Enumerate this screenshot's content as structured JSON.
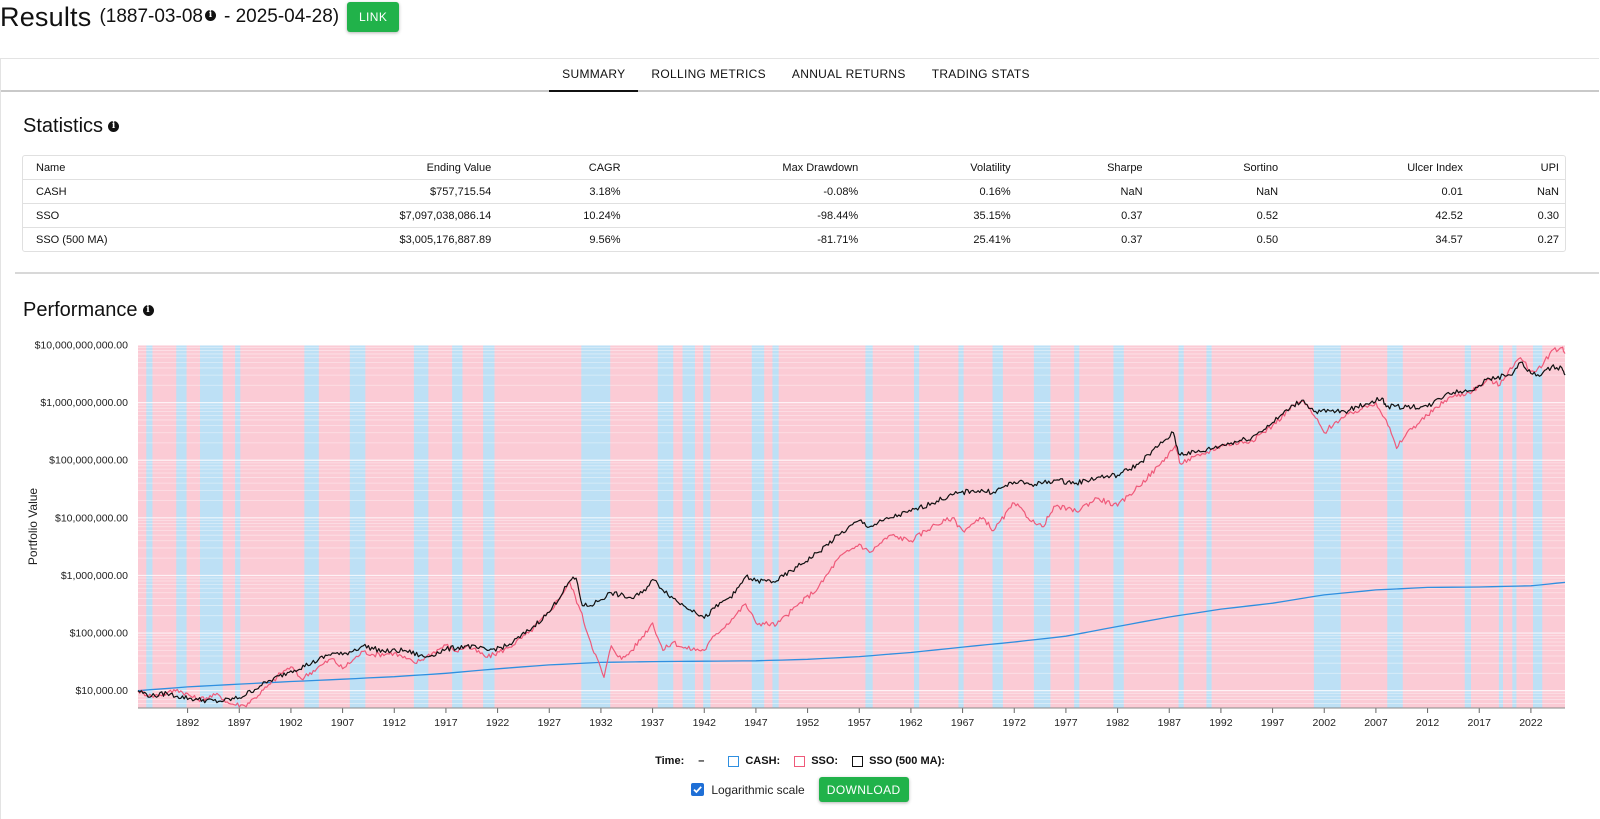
{
  "header": {
    "title": "Results",
    "range_start": "(1887-03-08",
    "range_end": "- 2025-04-28)",
    "link_button": "LINK",
    "info_icon": "info-icon"
  },
  "tabs": [
    {
      "label": "SUMMARY",
      "active": true
    },
    {
      "label": "ROLLING METRICS",
      "active": false
    },
    {
      "label": "ANNUAL RETURNS",
      "active": false
    },
    {
      "label": "TRADING STATS",
      "active": false
    }
  ],
  "statistics": {
    "title": "Statistics",
    "columns": [
      "Name",
      "Ending Value",
      "CAGR",
      "Max Drawdown",
      "Volatility",
      "Sharpe",
      "Sortino",
      "Ulcer Index",
      "UPI"
    ],
    "rows": [
      [
        "CASH",
        "$757,715.54",
        "3.18%",
        "-0.08%",
        "0.16%",
        "NaN",
        "NaN",
        "0.01",
        "NaN"
      ],
      [
        "SSO",
        "$7,097,038,086.14",
        "10.24%",
        "-98.44%",
        "35.15%",
        "0.37",
        "0.52",
        "42.52",
        "0.30"
      ],
      [
        "SSO (500 MA)",
        "$3,005,176,887.89",
        "9.56%",
        "-81.71%",
        "25.41%",
        "0.37",
        "0.50",
        "34.57",
        "0.27"
      ]
    ]
  },
  "performance": {
    "title": "Performance"
  },
  "chart_data": {
    "type": "line",
    "ylabel": "Portfolio Value",
    "y_scale": "log",
    "ylim": [
      5000,
      10000000000
    ],
    "xlim": [
      1887.2,
      2025.3
    ],
    "y_ticks": [
      "$10,000.00",
      "$100,000.00",
      "$1,000,000.00",
      "$10,000,000.00",
      "$100,000,000.00",
      "$1,000,000,000.00",
      "$10,000,000,000.00"
    ],
    "y_tick_values": [
      10000,
      100000,
      1000000,
      10000000,
      100000000,
      1000000000,
      10000000000
    ],
    "x_ticks": [
      "1892",
      "1897",
      "1902",
      "1907",
      "1912",
      "1917",
      "1922",
      "1927",
      "1932",
      "1937",
      "1942",
      "1947",
      "1952",
      "1957",
      "1962",
      "1967",
      "1972",
      "1977",
      "1982",
      "1987",
      "1992",
      "1997",
      "2002",
      "2007",
      "2012",
      "2017",
      "2022"
    ],
    "background_regimes": {
      "cash_color": "#bde0f5",
      "invested_color": "#fbcbd5",
      "cash_periods": [
        [
          1888.0,
          1888.6
        ],
        [
          1890.9,
          1891.9
        ],
        [
          1893.2,
          1895.4
        ],
        [
          1896.6,
          1897.1
        ],
        [
          1903.3,
          1904.7
        ],
        [
          1907.7,
          1909.2
        ],
        [
          1913.9,
          1915.3
        ],
        [
          1917.6,
          1918.6
        ],
        [
          1920.6,
          1921.7
        ],
        [
          1930.1,
          1932.9
        ],
        [
          1937.5,
          1939.0
        ],
        [
          1939.9,
          1941.1
        ],
        [
          1941.9,
          1942.6
        ],
        [
          1946.6,
          1947.8
        ],
        [
          1948.6,
          1949.2
        ],
        [
          1957.6,
          1958.3
        ],
        [
          1962.3,
          1962.8
        ],
        [
          1966.6,
          1967.1
        ],
        [
          1969.9,
          1970.9
        ],
        [
          1973.9,
          1975.5
        ],
        [
          1977.8,
          1978.3
        ],
        [
          1981.6,
          1982.6
        ],
        [
          1987.9,
          1988.4
        ],
        [
          1990.6,
          1991.1
        ],
        [
          2001.0,
          2003.6
        ],
        [
          2008.1,
          2009.6
        ],
        [
          2015.6,
          2016.2
        ],
        [
          2018.9,
          2019.3
        ],
        [
          2020.2,
          2020.6
        ],
        [
          2022.2,
          2023.1
        ]
      ]
    },
    "series": [
      {
        "name": "CASH",
        "color": "#2f8fe0",
        "points": [
          [
            1887.2,
            10000
          ],
          [
            1892,
            11600
          ],
          [
            1897,
            13000
          ],
          [
            1902,
            14400
          ],
          [
            1907,
            15800
          ],
          [
            1912,
            17500
          ],
          [
            1917,
            20000
          ],
          [
            1922,
            24000
          ],
          [
            1927,
            28000
          ],
          [
            1932,
            31000
          ],
          [
            1937,
            32000
          ],
          [
            1942,
            32500
          ],
          [
            1947,
            33000
          ],
          [
            1952,
            35000
          ],
          [
            1957,
            39000
          ],
          [
            1962,
            46000
          ],
          [
            1967,
            57000
          ],
          [
            1972,
            70000
          ],
          [
            1977,
            88000
          ],
          [
            1982,
            130000
          ],
          [
            1987,
            190000
          ],
          [
            1992,
            260000
          ],
          [
            1997,
            330000
          ],
          [
            2002,
            460000
          ],
          [
            2007,
            560000
          ],
          [
            2012,
            620000
          ],
          [
            2017,
            630000
          ],
          [
            2022,
            660000
          ],
          [
            2025.3,
            757715
          ]
        ]
      },
      {
        "name": "SSO",
        "color": "#ef5a7a",
        "points": [
          [
            1887.2,
            10000
          ],
          [
            1888.5,
            8000
          ],
          [
            1890,
            9000
          ],
          [
            1891,
            10500
          ],
          [
            1893,
            7000
          ],
          [
            1895,
            8500
          ],
          [
            1896,
            6000
          ],
          [
            1897.5,
            5500
          ],
          [
            1898.5,
            7500
          ],
          [
            1900,
            13000
          ],
          [
            1901,
            20000
          ],
          [
            1902,
            26000
          ],
          [
            1903,
            16000
          ],
          [
            1905,
            28000
          ],
          [
            1906,
            36000
          ],
          [
            1907,
            24000
          ],
          [
            1909,
            48000
          ],
          [
            1910,
            42000
          ],
          [
            1912,
            45000
          ],
          [
            1914,
            30000
          ],
          [
            1915,
            38000
          ],
          [
            1917,
            62000
          ],
          [
            1918,
            48000
          ],
          [
            1919,
            60000
          ],
          [
            1921,
            38000
          ],
          [
            1923,
            55000
          ],
          [
            1925,
            100000
          ],
          [
            1927,
            230000
          ],
          [
            1929,
            750000
          ],
          [
            1930,
            250000
          ],
          [
            1931,
            70000
          ],
          [
            1932.3,
            17000
          ],
          [
            1933,
            60000
          ],
          [
            1934,
            35000
          ],
          [
            1935,
            50000
          ],
          [
            1937,
            150000
          ],
          [
            1938,
            50000
          ],
          [
            1939,
            70000
          ],
          [
            1940,
            55000
          ],
          [
            1942,
            50000
          ],
          [
            1943,
            90000
          ],
          [
            1945,
            200000
          ],
          [
            1946,
            320000
          ],
          [
            1947,
            150000
          ],
          [
            1949,
            140000
          ],
          [
            1951,
            300000
          ],
          [
            1953,
            600000
          ],
          [
            1955,
            2000000
          ],
          [
            1957,
            3500000
          ],
          [
            1958,
            2500000
          ],
          [
            1960,
            5000000
          ],
          [
            1962,
            4000000
          ],
          [
            1964,
            7000000
          ],
          [
            1966,
            10000000
          ],
          [
            1967,
            6000000
          ],
          [
            1969,
            10000000
          ],
          [
            1970,
            6000000
          ],
          [
            1972,
            18000000
          ],
          [
            1974,
            8000000
          ],
          [
            1974.7,
            7000000
          ],
          [
            1976,
            16000000
          ],
          [
            1978,
            13000000
          ],
          [
            1980,
            22000000
          ],
          [
            1982,
            16000000
          ],
          [
            1984,
            35000000
          ],
          [
            1986,
            80000000
          ],
          [
            1987.6,
            180000000
          ],
          [
            1988,
            90000000
          ],
          [
            1990,
            120000000
          ],
          [
            1992,
            180000000
          ],
          [
            1995,
            220000000
          ],
          [
            1997,
            400000000
          ],
          [
            1999,
            900000000
          ],
          [
            2000,
            1050000000
          ],
          [
            2001,
            600000000
          ],
          [
            2002,
            300000000
          ],
          [
            2003,
            450000000
          ],
          [
            2005,
            700000000
          ],
          [
            2007,
            1000000000
          ],
          [
            2008,
            500000000
          ],
          [
            2009,
            160000000
          ],
          [
            2010,
            300000000
          ],
          [
            2012,
            600000000
          ],
          [
            2014,
            1200000000
          ],
          [
            2016,
            1500000000
          ],
          [
            2018,
            2500000000
          ],
          [
            2019,
            2000000000
          ],
          [
            2020,
            4000000000
          ],
          [
            2021,
            6000000000
          ],
          [
            2022,
            3500000000
          ],
          [
            2023,
            4000000000
          ],
          [
            2024,
            8000000000
          ],
          [
            2025,
            9000000000
          ],
          [
            2025.3,
            7097038086
          ]
        ]
      },
      {
        "name": "SSO (500 MA)",
        "color": "#111111",
        "points": [
          [
            1887.2,
            10000
          ],
          [
            1888.5,
            8000
          ],
          [
            1890,
            9000
          ],
          [
            1891,
            8000
          ],
          [
            1893,
            7000
          ],
          [
            1895,
            6500
          ],
          [
            1897,
            7500
          ],
          [
            1899,
            12000
          ],
          [
            1900,
            15000
          ],
          [
            1902,
            22000
          ],
          [
            1904,
            30000
          ],
          [
            1906,
            45000
          ],
          [
            1907,
            42000
          ],
          [
            1909,
            60000
          ],
          [
            1911,
            48000
          ],
          [
            1913,
            50000
          ],
          [
            1915,
            38000
          ],
          [
            1917,
            52000
          ],
          [
            1919,
            60000
          ],
          [
            1921,
            50000
          ],
          [
            1923,
            60000
          ],
          [
            1925,
            110000
          ],
          [
            1927,
            230000
          ],
          [
            1929,
            800000
          ],
          [
            1929.6,
            900000
          ],
          [
            1930.2,
            300000
          ],
          [
            1931,
            300000
          ],
          [
            1933,
            500000
          ],
          [
            1935,
            400000
          ],
          [
            1936,
            500000
          ],
          [
            1937,
            850000
          ],
          [
            1939,
            400000
          ],
          [
            1940,
            300000
          ],
          [
            1941,
            250000
          ],
          [
            1942,
            180000
          ],
          [
            1943,
            270000
          ],
          [
            1945,
            500000
          ],
          [
            1946,
            950000
          ],
          [
            1947,
            800000
          ],
          [
            1949,
            800000
          ],
          [
            1951,
            1400000
          ],
          [
            1953,
            2500000
          ],
          [
            1955,
            5000000
          ],
          [
            1957,
            9000000
          ],
          [
            1958,
            7000000
          ],
          [
            1960,
            10000000
          ],
          [
            1962,
            13000000
          ],
          [
            1964,
            18000000
          ],
          [
            1966,
            25000000
          ],
          [
            1968,
            30000000
          ],
          [
            1970,
            28000000
          ],
          [
            1972,
            42000000
          ],
          [
            1974,
            38000000
          ],
          [
            1976,
            45000000
          ],
          [
            1978,
            40000000
          ],
          [
            1980,
            50000000
          ],
          [
            1982,
            55000000
          ],
          [
            1984,
            85000000
          ],
          [
            1986,
            180000000
          ],
          [
            1987.4,
            300000000
          ],
          [
            1987.9,
            130000000
          ],
          [
            1990,
            140000000
          ],
          [
            1992,
            180000000
          ],
          [
            1995,
            250000000
          ],
          [
            1997,
            450000000
          ],
          [
            1999,
            900000000
          ],
          [
            2000,
            1100000000
          ],
          [
            2001,
            700000000
          ],
          [
            2004,
            700000000
          ],
          [
            2006,
            950000000
          ],
          [
            2007.6,
            1200000000
          ],
          [
            2008,
            850000000
          ],
          [
            2010,
            850000000
          ],
          [
            2012,
            850000000
          ],
          [
            2014,
            1500000000
          ],
          [
            2016,
            1600000000
          ],
          [
            2018,
            2600000000
          ],
          [
            2020,
            3000000000
          ],
          [
            2021,
            5000000000
          ],
          [
            2022,
            3200000000
          ],
          [
            2023,
            3000000000
          ],
          [
            2024,
            4200000000
          ],
          [
            2025,
            4000000000
          ],
          [
            2025.3,
            3005176887
          ]
        ]
      }
    ]
  },
  "legend": {
    "time_label": "Time:",
    "time_value": "–",
    "items": [
      {
        "label": "CASH:",
        "color": "#2f8fe0"
      },
      {
        "label": "SSO:",
        "color": "#ef5a7a"
      },
      {
        "label": "SSO (500 MA):",
        "color": "#111111"
      }
    ]
  },
  "controls": {
    "log_scale_label": "Logarithmic scale",
    "log_scale_checked": true,
    "download_button": "DOWNLOAD"
  }
}
